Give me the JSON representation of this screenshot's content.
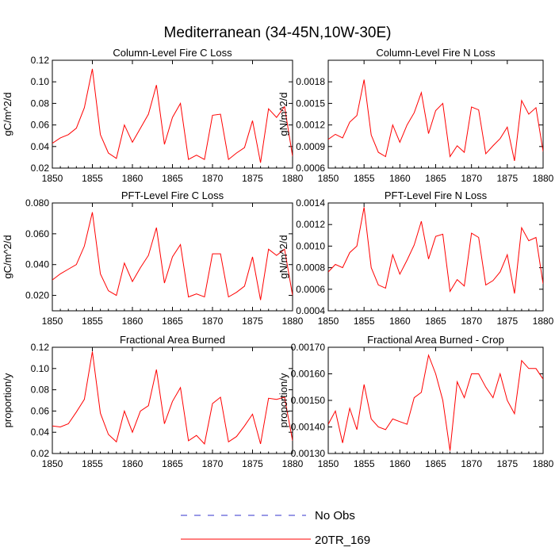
{
  "title": "Mediterranean (34-45N,10W-30E)",
  "colors": {
    "model": "#ff0000",
    "obs": "#3333cc",
    "axis": "#000000"
  },
  "legend": {
    "obs_label": "No Obs",
    "model_label": "20TR_169"
  },
  "chart_data": [
    {
      "type": "line",
      "title": "Column-Level Fire C Loss",
      "ylabel": "gC/m^2/d",
      "xlim": [
        1850,
        1880
      ],
      "ylim": [
        0.02,
        0.12
      ],
      "xticks": [
        1850,
        1855,
        1860,
        1865,
        1870,
        1875,
        1880
      ],
      "xtick_labels": [
        "1850",
        "1855",
        "1860",
        "1865",
        "1870",
        "1875",
        "1880"
      ],
      "yticks": [
        0.02,
        0.04,
        0.06,
        0.08,
        0.1,
        0.12
      ],
      "ytick_labels": [
        "0.02",
        "0.04",
        "0.06",
        "0.08",
        "0.10",
        "0.12"
      ],
      "x": [
        1850,
        1851,
        1852,
        1853,
        1854,
        1855,
        1856,
        1857,
        1858,
        1859,
        1860,
        1861,
        1862,
        1863,
        1864,
        1865,
        1866,
        1867,
        1868,
        1869,
        1870,
        1871,
        1872,
        1873,
        1874,
        1875,
        1876,
        1877,
        1878,
        1879,
        1880
      ],
      "series": [
        {
          "name": "20TR_169",
          "values": [
            0.043,
            0.048,
            0.051,
            0.057,
            0.076,
            0.112,
            0.051,
            0.034,
            0.029,
            0.06,
            0.044,
            0.057,
            0.07,
            0.097,
            0.042,
            0.067,
            0.08,
            0.028,
            0.032,
            0.028,
            0.069,
            0.07,
            0.028,
            0.034,
            0.039,
            0.064,
            0.025,
            0.075,
            0.067,
            0.077,
            0.031
          ]
        }
      ]
    },
    {
      "type": "line",
      "title": "Column-Level Fire N Loss",
      "ylabel": "gN/m^2/d",
      "xlim": [
        1850,
        1880
      ],
      "ylim": [
        0.0006,
        0.0021
      ],
      "xticks": [
        1850,
        1855,
        1860,
        1865,
        1870,
        1875,
        1880
      ],
      "xtick_labels": [
        "1850",
        "1855",
        "1860",
        "1865",
        "1870",
        "1875",
        "1880"
      ],
      "yticks": [
        0.0006,
        0.0009,
        0.0012,
        0.0015,
        0.0018
      ],
      "ytick_labels": [
        "0.0006",
        "0.0009",
        "0.0012",
        "0.0015",
        "0.0018"
      ],
      "x": [
        1850,
        1851,
        1852,
        1853,
        1854,
        1855,
        1856,
        1857,
        1858,
        1859,
        1860,
        1861,
        1862,
        1863,
        1864,
        1865,
        1866,
        1867,
        1868,
        1869,
        1870,
        1871,
        1872,
        1873,
        1874,
        1875,
        1876,
        1877,
        1878,
        1879,
        1880
      ],
      "series": [
        {
          "name": "20TR_169",
          "values": [
            0.001,
            0.00107,
            0.00102,
            0.00124,
            0.00133,
            0.00183,
            0.00106,
            0.00082,
            0.00076,
            0.0012,
            0.00096,
            0.0012,
            0.00137,
            0.00165,
            0.00108,
            0.0014,
            0.0015,
            0.00076,
            0.00091,
            0.00082,
            0.00145,
            0.00141,
            0.0008,
            0.00091,
            0.00101,
            0.00117,
            0.0007,
            0.00154,
            0.00135,
            0.00144,
            0.00083
          ]
        }
      ]
    },
    {
      "type": "line",
      "title": "PFT-Level Fire C Loss",
      "ylabel": "gC/m^2/d",
      "xlim": [
        1850,
        1880
      ],
      "ylim": [
        0.01,
        0.08
      ],
      "xticks": [
        1850,
        1855,
        1860,
        1865,
        1870,
        1875,
        1880
      ],
      "xtick_labels": [
        "1850",
        "1855",
        "1860",
        "1865",
        "1870",
        "1875",
        "1880"
      ],
      "yticks": [
        0.02,
        0.04,
        0.06,
        0.08
      ],
      "ytick_labels": [
        "0.020",
        "0.040",
        "0.060",
        "0.080"
      ],
      "x": [
        1850,
        1851,
        1852,
        1853,
        1854,
        1855,
        1856,
        1857,
        1858,
        1859,
        1860,
        1861,
        1862,
        1863,
        1864,
        1865,
        1866,
        1867,
        1868,
        1869,
        1870,
        1871,
        1872,
        1873,
        1874,
        1875,
        1876,
        1877,
        1878,
        1879,
        1880
      ],
      "series": [
        {
          "name": "20TR_169",
          "values": [
            0.03,
            0.034,
            0.037,
            0.04,
            0.052,
            0.074,
            0.034,
            0.023,
            0.02,
            0.041,
            0.029,
            0.038,
            0.046,
            0.064,
            0.028,
            0.045,
            0.053,
            0.019,
            0.021,
            0.019,
            0.047,
            0.047,
            0.019,
            0.022,
            0.026,
            0.045,
            0.017,
            0.05,
            0.046,
            0.05,
            0.02
          ]
        }
      ]
    },
    {
      "type": "line",
      "title": "PFT-Level Fire N Loss",
      "ylabel": "gN/m^2/d",
      "xlim": [
        1850,
        1880
      ],
      "ylim": [
        0.0004,
        0.0014
      ],
      "xticks": [
        1850,
        1855,
        1860,
        1865,
        1870,
        1875,
        1880
      ],
      "xtick_labels": [
        "1850",
        "1855",
        "1860",
        "1865",
        "1870",
        "1875",
        "1880"
      ],
      "yticks": [
        0.0004,
        0.0006,
        0.0008,
        0.001,
        0.0012,
        0.0014
      ],
      "ytick_labels": [
        "0.0004",
        "0.0006",
        "0.0008",
        "0.0010",
        "0.0012",
        "0.0014"
      ],
      "x": [
        1850,
        1851,
        1852,
        1853,
        1854,
        1855,
        1856,
        1857,
        1858,
        1859,
        1860,
        1861,
        1862,
        1863,
        1864,
        1865,
        1866,
        1867,
        1868,
        1869,
        1870,
        1871,
        1872,
        1873,
        1874,
        1875,
        1876,
        1877,
        1878,
        1879,
        1880
      ],
      "series": [
        {
          "name": "20TR_169",
          "values": [
            0.00076,
            0.00083,
            0.0008,
            0.00094,
            0.001,
            0.00136,
            0.0008,
            0.00064,
            0.00061,
            0.00092,
            0.00074,
            0.00087,
            0.00101,
            0.00123,
            0.00088,
            0.00109,
            0.00111,
            0.00058,
            0.00069,
            0.00063,
            0.00112,
            0.00108,
            0.00064,
            0.00068,
            0.00076,
            0.00092,
            0.00056,
            0.00117,
            0.00105,
            0.00108,
            0.00065
          ]
        }
      ]
    },
    {
      "type": "line",
      "title": "Fractional Area Burned",
      "ylabel": "proportion/y",
      "xlim": [
        1850,
        1880
      ],
      "ylim": [
        0.02,
        0.12
      ],
      "xticks": [
        1850,
        1855,
        1860,
        1865,
        1870,
        1875,
        1880
      ],
      "xtick_labels": [
        "1850",
        "1855",
        "1860",
        "1865",
        "1870",
        "1875",
        "1880"
      ],
      "yticks": [
        0.02,
        0.04,
        0.06,
        0.08,
        0.1,
        0.12
      ],
      "ytick_labels": [
        "0.02",
        "0.04",
        "0.06",
        "0.08",
        "0.10",
        "0.12"
      ],
      "x": [
        1850,
        1851,
        1852,
        1853,
        1854,
        1855,
        1856,
        1857,
        1858,
        1859,
        1860,
        1861,
        1862,
        1863,
        1864,
        1865,
        1866,
        1867,
        1868,
        1869,
        1870,
        1871,
        1872,
        1873,
        1874,
        1875,
        1876,
        1877,
        1878,
        1879,
        1880
      ],
      "series": [
        {
          "name": "20TR_169",
          "values": [
            0.046,
            0.045,
            0.048,
            0.059,
            0.071,
            0.116,
            0.058,
            0.038,
            0.031,
            0.06,
            0.04,
            0.06,
            0.065,
            0.099,
            0.048,
            0.069,
            0.082,
            0.032,
            0.037,
            0.029,
            0.067,
            0.073,
            0.031,
            0.036,
            0.046,
            0.057,
            0.029,
            0.072,
            0.071,
            0.073,
            0.032
          ]
        }
      ]
    },
    {
      "type": "line",
      "title": "Fractional Area Burned - Crop",
      "ylabel": "proportion/y",
      "xlim": [
        1850,
        1880
      ],
      "ylim": [
        0.0013,
        0.0017
      ],
      "xticks": [
        1850,
        1855,
        1860,
        1865,
        1870,
        1875,
        1880
      ],
      "xtick_labels": [
        "1850",
        "1855",
        "1860",
        "1865",
        "1870",
        "1875",
        "1880"
      ],
      "yticks": [
        0.0013,
        0.0014,
        0.0015,
        0.0016,
        0.0017
      ],
      "ytick_labels": [
        "0.00130",
        "0.00140",
        "0.00150",
        "0.00160",
        "0.00170"
      ],
      "x": [
        1850,
        1851,
        1852,
        1853,
        1854,
        1855,
        1856,
        1857,
        1858,
        1859,
        1860,
        1861,
        1862,
        1863,
        1864,
        1865,
        1866,
        1867,
        1868,
        1869,
        1870,
        1871,
        1872,
        1873,
        1874,
        1875,
        1876,
        1877,
        1878,
        1879,
        1880
      ],
      "series": [
        {
          "name": "20TR_169",
          "values": [
            0.00141,
            0.00146,
            0.00134,
            0.00147,
            0.00139,
            0.00156,
            0.00143,
            0.0014,
            0.00139,
            0.00143,
            0.00142,
            0.00141,
            0.00151,
            0.00153,
            0.00167,
            0.0016,
            0.0015,
            0.00131,
            0.00157,
            0.00151,
            0.0016,
            0.0016,
            0.00155,
            0.00151,
            0.0016,
            0.0015,
            0.00145,
            0.00165,
            0.00162,
            0.00162,
            0.00158
          ]
        }
      ]
    }
  ]
}
